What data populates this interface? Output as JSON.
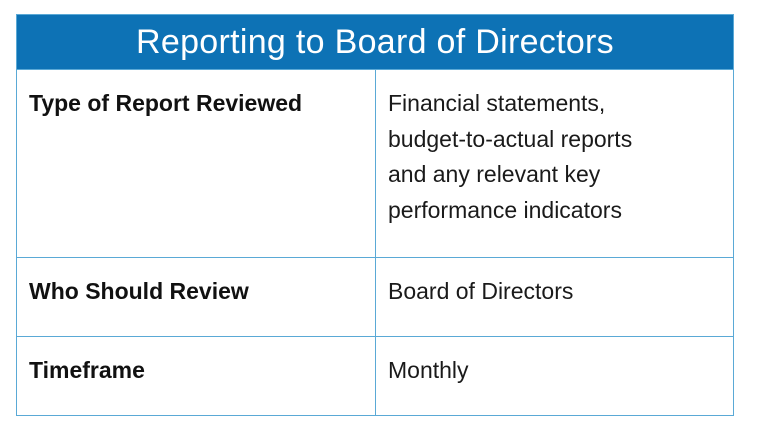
{
  "table": {
    "title": "Reporting to Board of Directors",
    "rows": [
      {
        "label": "Type of Report Reviewed",
        "value_lines": [
          "Financial statements,",
          "budget-to-actual reports",
          "and any relevant key",
          "performance indicators"
        ]
      },
      {
        "label": "Who Should Review",
        "value_lines": [
          "Board of Directors"
        ]
      },
      {
        "label": "Timeframe",
        "value_lines": [
          "Monthly"
        ]
      }
    ]
  },
  "colors": {
    "header_background": "#0d72b5",
    "header_text": "#ffffff",
    "border": "#5aa9d6"
  }
}
